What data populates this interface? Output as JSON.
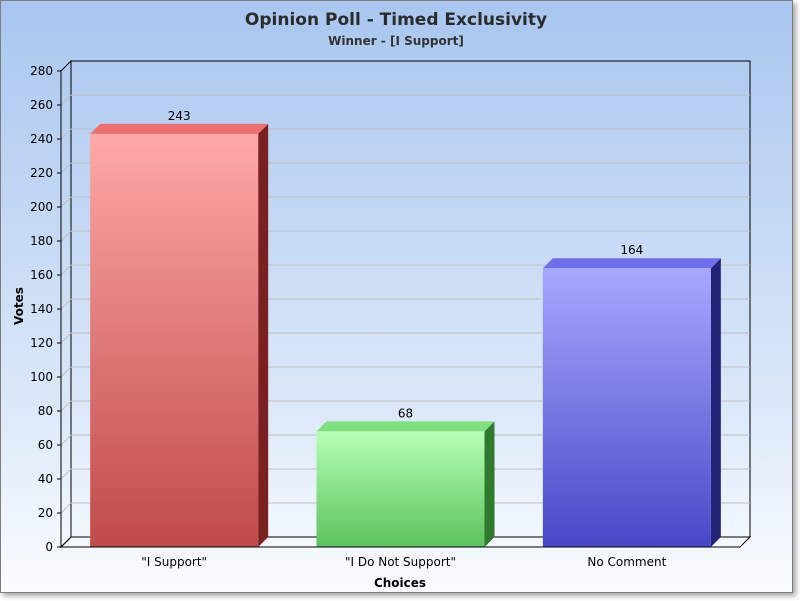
{
  "chart_data": {
    "type": "bar",
    "title": "Opinion Poll - Timed Exclusivity",
    "subtitle": "Winner - [I Support]",
    "xlabel": "Choices",
    "ylabel": "Votes",
    "categories": [
      "\"I Support\"",
      "\"I Do Not Support\"",
      "No Comment"
    ],
    "values": [
      243,
      68,
      164
    ],
    "data_labels": [
      "243",
      "68",
      "164"
    ],
    "ylim": [
      0,
      280
    ],
    "yticks": [
      0,
      20,
      40,
      60,
      80,
      100,
      120,
      140,
      160,
      180,
      200,
      220,
      240,
      260,
      280
    ],
    "grid": true,
    "legend": "none",
    "colors": [
      {
        "light": "#ffa8a8",
        "dark": "#c04a4a",
        "side": "#7a2020",
        "top": "#ee6f6f"
      },
      {
        "light": "#b6ffb6",
        "dark": "#5cc25c",
        "side": "#2f7a2f",
        "top": "#7fe07f"
      },
      {
        "light": "#a8a8ff",
        "dark": "#4848c8",
        "side": "#222277",
        "top": "#6f6fee"
      }
    ]
  }
}
